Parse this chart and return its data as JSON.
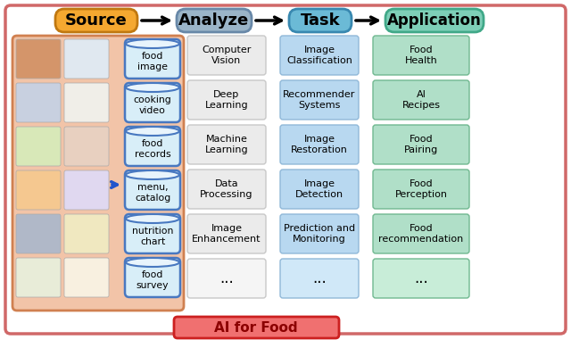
{
  "title": "AI for Food",
  "header_labels": [
    "Source",
    "Analyze",
    "Task",
    "Application"
  ],
  "header_colors": [
    "#F5A830",
    "#9BB5C8",
    "#6BBAD6",
    "#7ECFB8"
  ],
  "header_edge_colors": [
    "#C07810",
    "#6888A8",
    "#3888B0",
    "#40A888"
  ],
  "source_items": [
    "food\nimage",
    "cooking\nvideo",
    "food\nrecords",
    "menu,\ncatalog",
    "nutrition\nchart",
    "food\nsurvey"
  ],
  "analyze_items": [
    "Computer\nVision",
    "Deep\nLearning",
    "Machine\nLearning",
    "Data\nProcessing",
    "Image\nEnhancement",
    "..."
  ],
  "task_items": [
    "Image\nClassification",
    "Recommender\nSystems",
    "Image\nRestoration",
    "Image\nDetection",
    "Prediction and\nMonitoring",
    "..."
  ],
  "application_items": [
    "Food\nHealth",
    "AI\nRecipes",
    "Food\nPairing",
    "Food\nPerception",
    "Food\nrecommendation",
    "..."
  ],
  "analyze_box_color": "#EBEBEB",
  "analyze_box_last_color": "#F5F5F5",
  "task_box_color": "#B8D8F0",
  "task_box_last_color": "#D0E8F8",
  "application_box_color": "#B0DFC8",
  "application_box_last_color": "#C8EDD8",
  "source_bg_color": "#F2C4A8",
  "source_border_color": "#D08050",
  "cyl_face_color": "#D8EEF8",
  "cyl_edge_color": "#4878C0",
  "outer_border_color": "#D06868",
  "outer_bg_color": "#FFFFFF",
  "ai_box_color": "#F07070",
  "ai_box_edge": "#CC2020",
  "ai_text_color": "#8B0000",
  "thumb_colors": [
    "#E8A868",
    "#C8D8E8",
    "#D8E8C0",
    "#F0D0B0",
    "#C8C8D8",
    "#E0E8D0"
  ],
  "figure_width": 6.4,
  "figure_height": 3.9,
  "dpi": 100
}
